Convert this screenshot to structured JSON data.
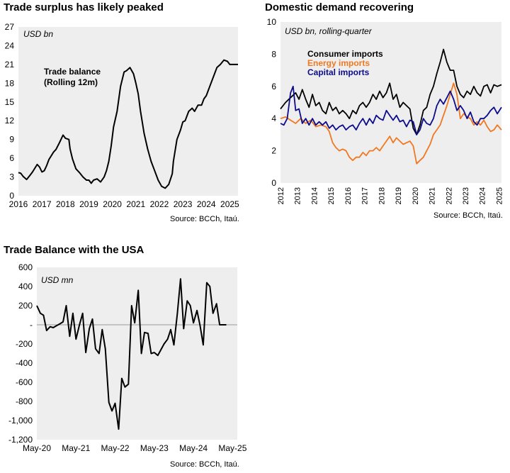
{
  "panels": {
    "p1": {
      "title": "Trade surplus has likely peaked",
      "unit_label": "USD bn",
      "annotation_line1": "Trade balance",
      "annotation_line2": "(Rolling 12m)",
      "source": "Source: BCCh, Itaú."
    },
    "p2": {
      "title": "Domestic demand recovering",
      "unit_label": "USD bn, rolling-quarter",
      "source": "Source: BCCh, Itaú."
    },
    "p3": {
      "title": "Trade Balance with the USA",
      "unit_label": "USD mn",
      "source": "Source: BCCh, Itaú."
    }
  },
  "colors": {
    "plot_bg": "#eeeeee",
    "black": "#000000",
    "orange": "#f07820",
    "navy": "#0c0c8c",
    "zero_line": "#999999"
  },
  "chart_data": [
    {
      "id": "p1",
      "type": "line",
      "title": "Trade surplus has likely peaked",
      "ylabel": "USD bn",
      "ylim": [
        0,
        27
      ],
      "yticks": [
        0,
        3,
        6,
        9,
        12,
        15,
        18,
        21,
        24,
        27
      ],
      "xlim": [
        2016,
        2025.35
      ],
      "xticks": [
        2016,
        2017,
        2018,
        2019,
        2020,
        2021,
        2022,
        2023,
        2024,
        2025
      ],
      "grid": false,
      "series": [
        {
          "name": "Trade balance (Rolling 12m)",
          "color": "#000000",
          "x": [
            2016.0,
            2016.1,
            2016.2,
            2016.35,
            2016.5,
            2016.6,
            2016.8,
            2016.9,
            2017.0,
            2017.1,
            2017.2,
            2017.3,
            2017.5,
            2017.6,
            2017.75,
            2017.9,
            2018.0,
            2018.15,
            2018.2,
            2018.3,
            2018.45,
            2018.6,
            2018.75,
            2018.9,
            2019.0,
            2019.1,
            2019.2,
            2019.35,
            2019.5,
            2019.65,
            2019.75,
            2019.85,
            2019.95,
            2020.05,
            2020.2,
            2020.35,
            2020.5,
            2020.6,
            2020.75,
            2020.9,
            2021.0,
            2021.1,
            2021.2,
            2021.35,
            2021.5,
            2021.65,
            2021.8,
            2021.95,
            2022.1,
            2022.25,
            2022.4,
            2022.55,
            2022.6,
            2022.75,
            2022.9,
            2023.0,
            2023.1,
            2023.25,
            2023.4,
            2023.5,
            2023.65,
            2023.8,
            2023.9,
            2024.0,
            2024.15,
            2024.3,
            2024.45,
            2024.6,
            2024.75,
            2024.9,
            2025.0,
            2025.15,
            2025.35
          ],
          "y": [
            3.7,
            3.6,
            3.1,
            2.6,
            3.3,
            3.8,
            5.0,
            4.6,
            3.8,
            4.0,
            4.8,
            5.8,
            7.0,
            7.4,
            8.5,
            9.7,
            9.2,
            9.0,
            7.5,
            5.9,
            4.3,
            3.7,
            3.0,
            2.5,
            2.5,
            2.0,
            2.5,
            2.7,
            2.2,
            3.0,
            4.0,
            5.5,
            8.0,
            11.0,
            13.5,
            17.5,
            19.8,
            20.0,
            20.5,
            19.5,
            18.0,
            16.3,
            13.5,
            10.0,
            7.5,
            5.5,
            4.0,
            2.5,
            1.5,
            1.2,
            1.8,
            3.5,
            5.5,
            9.0,
            10.5,
            11.8,
            12.0,
            13.5,
            14.0,
            13.5,
            14.5,
            14.5,
            15.5,
            16.0,
            17.5,
            19.0,
            20.5,
            21.0,
            21.7,
            21.5,
            21.0,
            21.0,
            21.0
          ]
        }
      ]
    },
    {
      "id": "p2",
      "type": "line",
      "title": "Domestic demand recovering",
      "ylabel": "USD bn, rolling-quarter",
      "ylim": [
        0,
        10
      ],
      "yticks": [
        0,
        2,
        4,
        6,
        8,
        10
      ],
      "xlim": [
        2012,
        2025.15
      ],
      "xticks": [
        2012,
        2013,
        2014,
        2015,
        2016,
        2017,
        2018,
        2019,
        2020,
        2021,
        2022,
        2023,
        2024,
        2025
      ],
      "grid": false,
      "legend": "top-center",
      "series": [
        {
          "name": "Consumer imports",
          "color": "#000000",
          "x": [
            2012.0,
            2012.3,
            2012.6,
            2012.9,
            2013.1,
            2013.3,
            2013.5,
            2013.7,
            2013.9,
            2014.1,
            2014.3,
            2014.5,
            2014.7,
            2014.9,
            2015.1,
            2015.3,
            2015.5,
            2015.7,
            2015.9,
            2016.1,
            2016.3,
            2016.5,
            2016.7,
            2016.9,
            2017.1,
            2017.3,
            2017.5,
            2017.7,
            2017.9,
            2018.1,
            2018.3,
            2018.5,
            2018.7,
            2018.9,
            2019.1,
            2019.3,
            2019.5,
            2019.7,
            2019.9,
            2020.1,
            2020.3,
            2020.5,
            2020.7,
            2020.9,
            2021.1,
            2021.3,
            2021.5,
            2021.7,
            2021.9,
            2022.1,
            2022.3,
            2022.5,
            2022.7,
            2022.9,
            2023.1,
            2023.3,
            2023.5,
            2023.7,
            2023.9,
            2024.1,
            2024.3,
            2024.5,
            2024.7,
            2024.9,
            2025.15
          ],
          "y": [
            4.6,
            5.0,
            5.3,
            5.6,
            5.2,
            5.8,
            5.2,
            4.7,
            5.5,
            4.8,
            5.0,
            4.5,
            4.3,
            5.0,
            4.5,
            4.7,
            4.3,
            4.5,
            4.3,
            4.0,
            4.5,
            4.3,
            4.8,
            5.0,
            4.7,
            5.0,
            5.5,
            5.2,
            5.7,
            5.3,
            5.6,
            6.2,
            5.2,
            5.5,
            4.7,
            5.0,
            4.8,
            4.6,
            3.4,
            3.0,
            3.6,
            4.5,
            4.7,
            5.5,
            6.0,
            6.8,
            7.5,
            8.3,
            7.5,
            7.0,
            7.0,
            6.0,
            5.5,
            5.3,
            5.7,
            5.5,
            6.0,
            5.6,
            5.4,
            6.0,
            6.1,
            5.6,
            6.1,
            6.0,
            6.1
          ]
        },
        {
          "name": "Energy imports",
          "color": "#f07820",
          "x": [
            2012.0,
            2012.3,
            2012.6,
            2012.9,
            2013.2,
            2013.5,
            2013.8,
            2014.1,
            2014.4,
            2014.7,
            2014.9,
            2015.1,
            2015.3,
            2015.5,
            2015.7,
            2015.9,
            2016.1,
            2016.3,
            2016.5,
            2016.7,
            2016.9,
            2017.1,
            2017.3,
            2017.5,
            2017.7,
            2017.9,
            2018.1,
            2018.3,
            2018.5,
            2018.7,
            2018.9,
            2019.1,
            2019.3,
            2019.5,
            2019.7,
            2019.9,
            2020.1,
            2020.3,
            2020.5,
            2020.7,
            2020.9,
            2021.1,
            2021.3,
            2021.5,
            2021.7,
            2021.9,
            2022.1,
            2022.3,
            2022.5,
            2022.7,
            2022.9,
            2023.1,
            2023.3,
            2023.5,
            2023.7,
            2023.9,
            2024.1,
            2024.3,
            2024.5,
            2024.7,
            2024.9,
            2025.15
          ],
          "y": [
            4.0,
            4.1,
            3.9,
            3.7,
            4.0,
            3.7,
            3.9,
            3.5,
            3.6,
            3.5,
            3.2,
            2.5,
            2.2,
            2.0,
            2.1,
            2.0,
            1.6,
            1.4,
            1.6,
            1.6,
            1.9,
            1.7,
            2.0,
            2.0,
            2.2,
            2.0,
            2.3,
            2.6,
            2.9,
            2.5,
            2.8,
            2.6,
            2.4,
            2.5,
            2.6,
            2.3,
            1.2,
            1.4,
            1.6,
            2.0,
            2.4,
            3.0,
            3.3,
            3.6,
            4.2,
            4.8,
            5.5,
            6.2,
            5.5,
            4.0,
            4.3,
            4.1,
            4.0,
            3.6,
            3.8,
            3.6,
            3.9,
            3.5,
            3.2,
            3.3,
            3.6,
            3.3
          ]
        },
        {
          "name": "Capital imports",
          "color": "#0c0c8c",
          "x": [
            2012.0,
            2012.2,
            2012.4,
            2012.6,
            2012.75,
            2012.9,
            2013.1,
            2013.3,
            2013.5,
            2013.7,
            2013.9,
            2014.1,
            2014.3,
            2014.5,
            2014.7,
            2014.9,
            2015.1,
            2015.3,
            2015.5,
            2015.7,
            2015.9,
            2016.1,
            2016.3,
            2016.5,
            2016.7,
            2016.9,
            2017.1,
            2017.3,
            2017.5,
            2017.7,
            2017.9,
            2018.1,
            2018.3,
            2018.5,
            2018.7,
            2018.9,
            2019.1,
            2019.3,
            2019.5,
            2019.7,
            2019.9,
            2020.1,
            2020.3,
            2020.5,
            2020.7,
            2020.9,
            2021.1,
            2021.3,
            2021.5,
            2021.7,
            2021.9,
            2022.1,
            2022.3,
            2022.5,
            2022.7,
            2022.9,
            2023.1,
            2023.3,
            2023.5,
            2023.7,
            2023.9,
            2024.1,
            2024.3,
            2024.5,
            2024.7,
            2024.9,
            2025.15
          ],
          "y": [
            3.7,
            3.6,
            4.0,
            5.6,
            6.0,
            4.5,
            4.6,
            3.7,
            4.0,
            3.6,
            4.0,
            3.6,
            3.8,
            3.6,
            3.8,
            3.4,
            3.6,
            3.3,
            3.5,
            3.6,
            3.3,
            3.5,
            3.6,
            3.3,
            3.7,
            4.0,
            3.6,
            4.0,
            3.7,
            4.2,
            4.0,
            3.9,
            4.5,
            4.2,
            3.9,
            4.2,
            3.8,
            3.9,
            3.5,
            3.9,
            3.8,
            3.0,
            3.3,
            4.0,
            3.7,
            3.6,
            4.0,
            4.8,
            5.2,
            4.9,
            5.3,
            5.7,
            5.2,
            4.5,
            4.8,
            4.5,
            4.0,
            4.4,
            3.8,
            3.6,
            4.0,
            4.0,
            4.2,
            4.5,
            4.7,
            4.3,
            4.7
          ]
        }
      ]
    },
    {
      "id": "p3",
      "type": "line",
      "title": "Trade Balance with the USA",
      "ylabel": "USD mn",
      "ylim": [
        -1200,
        600
      ],
      "yticks": [
        -1200,
        -1000,
        -800,
        -600,
        -400,
        -200,
        0,
        200,
        400,
        600
      ],
      "ytick_labels": [
        "-1,200",
        "-1,000",
        "-800",
        "-600",
        "-400",
        "-200",
        "-",
        "200",
        "400",
        "600"
      ],
      "xlim": [
        2020.33,
        2025.45
      ],
      "xticks": [
        2020.33,
        2021.33,
        2022.33,
        2023.33,
        2024.33,
        2025.33
      ],
      "xtick_labels": [
        "May-20",
        "May-21",
        "May-22",
        "May-23",
        "May-24",
        "May-25"
      ],
      "grid": false,
      "series": [
        {
          "name": "Trade balance with the USA",
          "color": "#000000",
          "x": [
            2020.33,
            2020.42,
            2020.5,
            2020.58,
            2020.67,
            2020.75,
            2020.83,
            2020.92,
            2021.0,
            2021.08,
            2021.17,
            2021.25,
            2021.33,
            2021.42,
            2021.5,
            2021.58,
            2021.67,
            2021.75,
            2021.83,
            2021.92,
            2022.0,
            2022.08,
            2022.17,
            2022.25,
            2022.33,
            2022.42,
            2022.5,
            2022.58,
            2022.67,
            2022.75,
            2022.83,
            2022.92,
            2023.0,
            2023.08,
            2023.17,
            2023.25,
            2023.33,
            2023.42,
            2023.5,
            2023.58,
            2023.67,
            2023.75,
            2023.83,
            2023.92,
            2024.0,
            2024.08,
            2024.17,
            2024.25,
            2024.33,
            2024.42,
            2024.5,
            2024.58,
            2024.67,
            2024.75,
            2024.83,
            2024.92,
            2025.0,
            2025.08,
            2025.17,
            2025.25,
            2025.33
          ],
          "y": [
            200,
            120,
            100,
            -60,
            -20,
            -30,
            -10,
            10,
            30,
            200,
            -120,
            120,
            -150,
            0,
            120,
            -290,
            -40,
            60,
            -250,
            -300,
            -50,
            -250,
            -810,
            -900,
            -820,
            -1090,
            -560,
            -650,
            -620,
            200,
            20,
            360,
            -300,
            -80,
            -90,
            -300,
            -290,
            -320,
            -260,
            -200,
            -150,
            -50,
            -210,
            120,
            480,
            -40,
            250,
            200,
            20,
            150,
            -10,
            -210,
            440,
            400,
            120,
            220,
            0,
            0,
            0,
            0,
            0
          ]
        }
      ]
    }
  ]
}
